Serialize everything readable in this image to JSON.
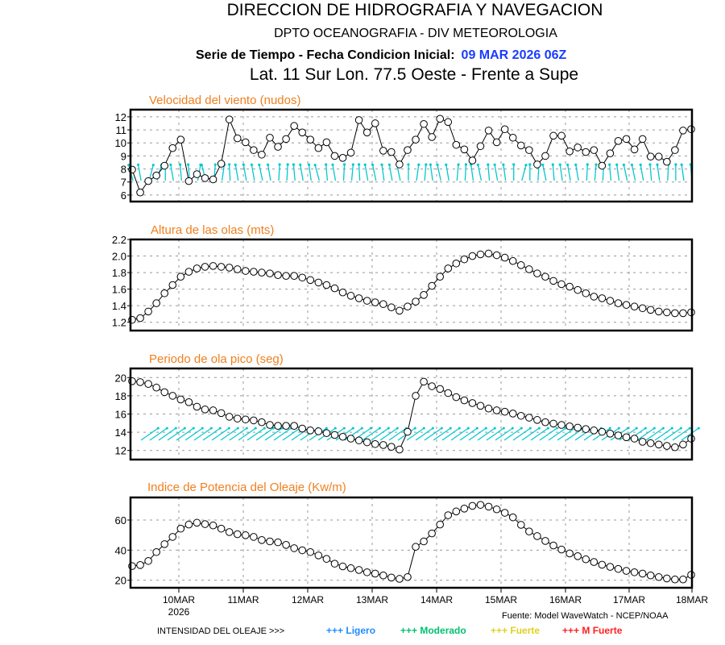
{
  "header": {
    "line1": "DIRECCION DE HIDROGRAFIA Y NAVEGACION",
    "line2": "DPTO OCEANOGRAFIA - DIV METEOROLOGIA",
    "line3_label": "Serie de Tiempo - Fecha Condicion Inicial:",
    "line3_date": "09 MAR 2026 06Z",
    "line3_date_color": "#1a3cff",
    "line4": "Lat. 11 Sur  Lon. 77.5 Oeste - Frente a Supe"
  },
  "chart_data": [
    {
      "type": "line",
      "title": "Velocidad del viento (nudos)",
      "ylim": [
        5.5,
        12.55
      ],
      "yticks": [
        "6",
        "7",
        "8",
        "9",
        "10",
        "11",
        "12"
      ],
      "grid": true,
      "marker": "open-circle",
      "values": [
        7.95,
        6.2,
        7.07,
        7.5,
        8.25,
        9.6,
        10.25,
        7.07,
        7.6,
        7.3,
        7.2,
        8.4,
        11.8,
        10.35,
        10.05,
        9.45,
        9.1,
        10.4,
        9.7,
        10.3,
        11.3,
        10.8,
        10.25,
        9.6,
        10.05,
        9.0,
        8.85,
        9.25,
        11.75,
        10.8,
        11.5,
        9.4,
        9.3,
        8.35,
        9.45,
        10.25,
        11.45,
        10.45,
        11.85,
        11.6,
        9.85,
        9.5,
        8.65,
        9.75,
        10.95,
        10.05,
        11.05,
        10.4,
        9.8,
        9.45,
        8.35,
        9.0,
        10.55,
        10.55,
        9.35,
        9.65,
        9.3,
        9.45,
        8.25,
        9.2,
        10.15,
        10.3,
        9.5,
        10.3,
        8.95,
        8.95,
        8.55,
        9.45,
        10.95,
        11.05
      ],
      "wind_arrow_tilt_deg": [
        -15,
        -10,
        15,
        15,
        0,
        -10,
        -5,
        -5,
        10,
        -15,
        5,
        8,
        -3,
        -10,
        -10,
        -10,
        -12,
        -10,
        3,
        3,
        -5,
        -10,
        -8,
        -15,
        -5,
        -10,
        3,
        5,
        -3,
        -10,
        -12,
        -8,
        -10,
        -12,
        0,
        8,
        5,
        -8,
        -12,
        -10,
        5,
        3,
        -8,
        -12,
        -5,
        -10,
        -8,
        0,
        15,
        0,
        3,
        -12,
        -5,
        -8,
        -10,
        -10,
        3,
        5,
        3,
        -5,
        -8,
        -12,
        -12,
        -10,
        -5,
        -8,
        3,
        0,
        -8,
        -5
      ],
      "wind_arrow_color": "#00c8d0"
    },
    {
      "type": "line",
      "title": "Altura de las olas (mts)",
      "ylim": [
        1.1,
        2.2
      ],
      "yticks": [
        "1.2",
        "1.4",
        "1.6",
        "1.8",
        "2.0",
        "2.2"
      ],
      "grid": true,
      "marker": "open-circle",
      "values": [
        1.23,
        1.25,
        1.33,
        1.43,
        1.55,
        1.65,
        1.75,
        1.81,
        1.85,
        1.87,
        1.88,
        1.87,
        1.86,
        1.84,
        1.82,
        1.81,
        1.8,
        1.79,
        1.77,
        1.76,
        1.76,
        1.74,
        1.71,
        1.68,
        1.65,
        1.61,
        1.56,
        1.52,
        1.49,
        1.46,
        1.44,
        1.42,
        1.38,
        1.34,
        1.39,
        1.45,
        1.53,
        1.64,
        1.75,
        1.85,
        1.91,
        1.96,
        2.0,
        2.02,
        2.03,
        2.01,
        1.98,
        1.94,
        1.89,
        1.84,
        1.79,
        1.75,
        1.7,
        1.66,
        1.63,
        1.59,
        1.55,
        1.51,
        1.49,
        1.46,
        1.43,
        1.41,
        1.39,
        1.37,
        1.35,
        1.33,
        1.32,
        1.31,
        1.31,
        1.32
      ]
    },
    {
      "type": "line",
      "title": "Periodo de ola pico (seg)",
      "ylim": [
        11,
        21
      ],
      "yticks": [
        "12",
        "14",
        "16",
        "18",
        "20"
      ],
      "grid": true,
      "marker": "open-circle",
      "values": [
        19.6,
        19.5,
        19.3,
        18.9,
        18.4,
        18.0,
        17.6,
        17.3,
        16.8,
        16.5,
        16.4,
        16.1,
        15.7,
        15.5,
        15.4,
        15.3,
        15.1,
        14.8,
        14.7,
        14.7,
        14.7,
        14.4,
        14.2,
        14.1,
        13.9,
        13.7,
        13.5,
        13.3,
        13.1,
        12.9,
        12.7,
        12.6,
        12.4,
        12.1,
        14.05,
        18.0,
        19.55,
        19.05,
        18.75,
        18.3,
        17.85,
        17.5,
        17.2,
        16.9,
        16.6,
        16.4,
        16.25,
        16.05,
        15.8,
        15.6,
        15.35,
        15.1,
        14.95,
        14.8,
        14.65,
        14.5,
        14.35,
        14.2,
        14.05,
        13.85,
        13.65,
        13.45,
        13.3,
        12.95,
        12.8,
        12.65,
        12.5,
        12.35,
        12.65,
        13.3
      ],
      "wave_arrow_bearing_deg": 55,
      "wave_arrow_color": "#00c8d0"
    },
    {
      "type": "line",
      "title": "Indice de Potencia del Oleaje (Kw/m)",
      "ylim": [
        15,
        75
      ],
      "yticks": [
        "20",
        "40",
        "60"
      ],
      "grid": true,
      "marker": "open-circle",
      "values": [
        29.4,
        30.1,
        32.8,
        38.7,
        44,
        48.8,
        54.3,
        57,
        58.2,
        57.3,
        56.4,
        54.3,
        52,
        50.6,
        49.9,
        48.8,
        46.7,
        45.8,
        45.2,
        43.5,
        41.3,
        39.9,
        38.7,
        36.5,
        34.2,
        31,
        29.2,
        28,
        26.8,
        25.3,
        24.4,
        23.2,
        21.8,
        20.9,
        22.1,
        42.2,
        45.8,
        51.1,
        57,
        63.2,
        65.7,
        67.6,
        69.4,
        70.1,
        68.9,
        67.1,
        64.8,
        61.8,
        56.8,
        52.4,
        49.3,
        46.1,
        43.1,
        40.4,
        37.8,
        36,
        33.9,
        32.1,
        30.3,
        28.9,
        27.5,
        26.2,
        25.3,
        24.4,
        23.2,
        22.1,
        21.2,
        20.5,
        20.5,
        23.6
      ]
    }
  ],
  "x_axis": {
    "tick_labels": [
      "10MAR",
      "11MAR",
      "12MAR",
      "13MAR",
      "14MAR",
      "15MAR",
      "16MAR",
      "17MAR",
      "18MAR"
    ],
    "year_label": "2026"
  },
  "footer": {
    "source": "Fuente: Model WaveWatch - NCEP/NOAA",
    "legend_title": "INTENSIDAD DEL OLEAJE >>>",
    "legend": [
      {
        "label": "+++ Ligero",
        "color": "#1e8cff"
      },
      {
        "label": "+++ Moderado",
        "color": "#00c070"
      },
      {
        "label": "+++ Fuerte",
        "color": "#e0d020"
      },
      {
        "label": "+++ M Fuerte",
        "color": "#ff2020"
      }
    ]
  }
}
